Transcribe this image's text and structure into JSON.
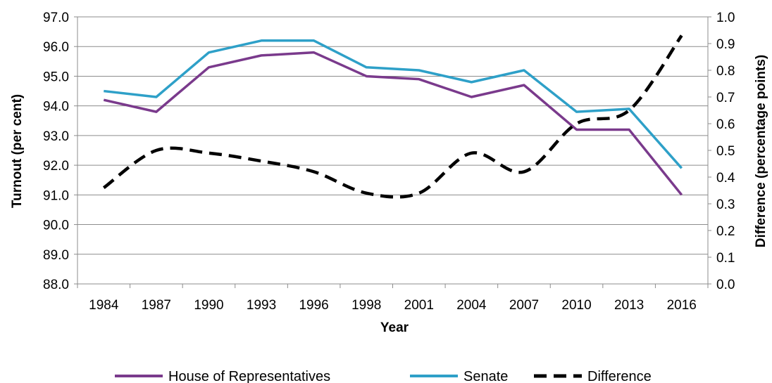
{
  "chart_data": {
    "type": "line",
    "categories": [
      "1984",
      "1987",
      "1990",
      "1993",
      "1996",
      "1998",
      "2001",
      "2004",
      "2007",
      "2010",
      "2013",
      "2016"
    ],
    "xlabel": "Year",
    "ylabel": "Turnout (per cent)",
    "y2label": "Difference (percentage points)",
    "ylim": [
      88.0,
      97.0
    ],
    "y2lim": [
      0.0,
      1.0
    ],
    "yticks": [
      "88.0",
      "89.0",
      "90.0",
      "91.0",
      "92.0",
      "93.0",
      "94.0",
      "95.0",
      "96.0",
      "97.0"
    ],
    "y2ticks": [
      "0.0",
      "0.1",
      "0.2",
      "0.3",
      "0.4",
      "0.5",
      "0.6",
      "0.7",
      "0.8",
      "0.9",
      "1.0"
    ],
    "grid": true,
    "legend_position": "bottom",
    "series": [
      {
        "name": "House of Representatives",
        "axis": "left",
        "color": "#7a3a8c",
        "style": "solid",
        "values": [
          94.2,
          93.8,
          95.3,
          95.7,
          95.8,
          95.0,
          94.9,
          94.3,
          94.7,
          93.2,
          93.2,
          91.0
        ]
      },
      {
        "name": "Senate",
        "axis": "left",
        "color": "#2ea0c8",
        "style": "solid",
        "values": [
          94.5,
          94.3,
          95.8,
          96.2,
          96.2,
          95.3,
          95.2,
          94.8,
          95.2,
          93.8,
          93.9,
          91.9
        ]
      },
      {
        "name": "Difference",
        "axis": "right",
        "color": "#000000",
        "style": "dashed",
        "values": [
          0.36,
          0.5,
          0.49,
          0.46,
          0.42,
          0.34,
          0.34,
          0.49,
          0.42,
          0.6,
          0.65,
          0.93
        ]
      }
    ]
  }
}
